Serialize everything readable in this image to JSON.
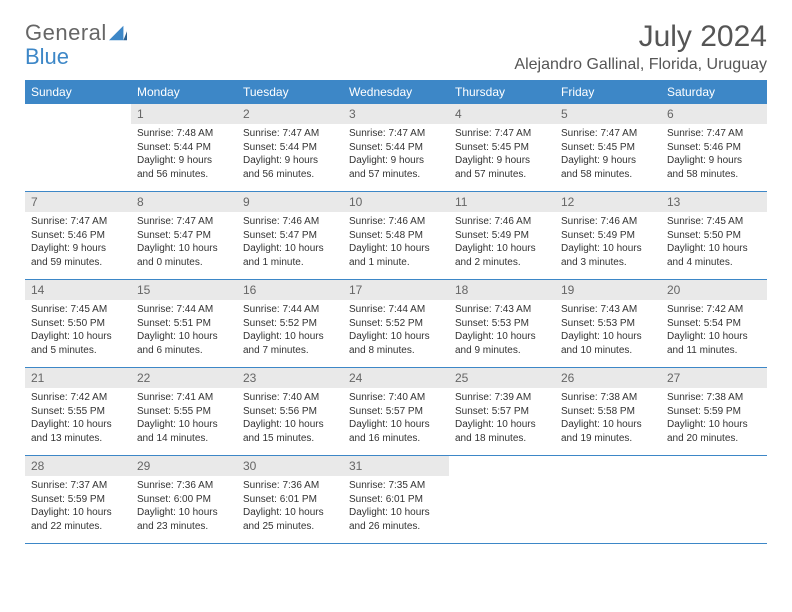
{
  "logo": {
    "text1": "General",
    "text2": "Blue"
  },
  "title": "July 2024",
  "location": "Alejandro Gallinal, Florida, Uruguay",
  "colors": {
    "header_bg": "#3d87c7",
    "header_text": "#ffffff",
    "daynum_bg": "#e9e9e9",
    "daynum_text": "#666666",
    "body_bg": "#ffffff",
    "text": "#333333",
    "rule": "#3d87c7",
    "title_text": "#555555"
  },
  "typography": {
    "title_fontsize": 30,
    "location_fontsize": 16,
    "weekday_fontsize": 12,
    "daynum_fontsize": 12,
    "cell_fontsize": 10
  },
  "weekdays": [
    "Sunday",
    "Monday",
    "Tuesday",
    "Wednesday",
    "Thursday",
    "Friday",
    "Saturday"
  ],
  "weeks": [
    {
      "nums": [
        "",
        "1",
        "2",
        "3",
        "4",
        "5",
        "6"
      ],
      "cells": [
        "",
        "Sunrise: 7:48 AM\nSunset: 5:44 PM\nDaylight: 9 hours and 56 minutes.",
        "Sunrise: 7:47 AM\nSunset: 5:44 PM\nDaylight: 9 hours and 56 minutes.",
        "Sunrise: 7:47 AM\nSunset: 5:44 PM\nDaylight: 9 hours and 57 minutes.",
        "Sunrise: 7:47 AM\nSunset: 5:45 PM\nDaylight: 9 hours and 57 minutes.",
        "Sunrise: 7:47 AM\nSunset: 5:45 PM\nDaylight: 9 hours and 58 minutes.",
        "Sunrise: 7:47 AM\nSunset: 5:46 PM\nDaylight: 9 hours and 58 minutes."
      ]
    },
    {
      "nums": [
        "7",
        "8",
        "9",
        "10",
        "11",
        "12",
        "13"
      ],
      "cells": [
        "Sunrise: 7:47 AM\nSunset: 5:46 PM\nDaylight: 9 hours and 59 minutes.",
        "Sunrise: 7:47 AM\nSunset: 5:47 PM\nDaylight: 10 hours and 0 minutes.",
        "Sunrise: 7:46 AM\nSunset: 5:47 PM\nDaylight: 10 hours and 1 minute.",
        "Sunrise: 7:46 AM\nSunset: 5:48 PM\nDaylight: 10 hours and 1 minute.",
        "Sunrise: 7:46 AM\nSunset: 5:49 PM\nDaylight: 10 hours and 2 minutes.",
        "Sunrise: 7:46 AM\nSunset: 5:49 PM\nDaylight: 10 hours and 3 minutes.",
        "Sunrise: 7:45 AM\nSunset: 5:50 PM\nDaylight: 10 hours and 4 minutes."
      ]
    },
    {
      "nums": [
        "14",
        "15",
        "16",
        "17",
        "18",
        "19",
        "20"
      ],
      "cells": [
        "Sunrise: 7:45 AM\nSunset: 5:50 PM\nDaylight: 10 hours and 5 minutes.",
        "Sunrise: 7:44 AM\nSunset: 5:51 PM\nDaylight: 10 hours and 6 minutes.",
        "Sunrise: 7:44 AM\nSunset: 5:52 PM\nDaylight: 10 hours and 7 minutes.",
        "Sunrise: 7:44 AM\nSunset: 5:52 PM\nDaylight: 10 hours and 8 minutes.",
        "Sunrise: 7:43 AM\nSunset: 5:53 PM\nDaylight: 10 hours and 9 minutes.",
        "Sunrise: 7:43 AM\nSunset: 5:53 PM\nDaylight: 10 hours and 10 minutes.",
        "Sunrise: 7:42 AM\nSunset: 5:54 PM\nDaylight: 10 hours and 11 minutes."
      ]
    },
    {
      "nums": [
        "21",
        "22",
        "23",
        "24",
        "25",
        "26",
        "27"
      ],
      "cells": [
        "Sunrise: 7:42 AM\nSunset: 5:55 PM\nDaylight: 10 hours and 13 minutes.",
        "Sunrise: 7:41 AM\nSunset: 5:55 PM\nDaylight: 10 hours and 14 minutes.",
        "Sunrise: 7:40 AM\nSunset: 5:56 PM\nDaylight: 10 hours and 15 minutes.",
        "Sunrise: 7:40 AM\nSunset: 5:57 PM\nDaylight: 10 hours and 16 minutes.",
        "Sunrise: 7:39 AM\nSunset: 5:57 PM\nDaylight: 10 hours and 18 minutes.",
        "Sunrise: 7:38 AM\nSunset: 5:58 PM\nDaylight: 10 hours and 19 minutes.",
        "Sunrise: 7:38 AM\nSunset: 5:59 PM\nDaylight: 10 hours and 20 minutes."
      ]
    },
    {
      "nums": [
        "28",
        "29",
        "30",
        "31",
        "",
        "",
        ""
      ],
      "cells": [
        "Sunrise: 7:37 AM\nSunset: 5:59 PM\nDaylight: 10 hours and 22 minutes.",
        "Sunrise: 7:36 AM\nSunset: 6:00 PM\nDaylight: 10 hours and 23 minutes.",
        "Sunrise: 7:36 AM\nSunset: 6:01 PM\nDaylight: 10 hours and 25 minutes.",
        "Sunrise: 7:35 AM\nSunset: 6:01 PM\nDaylight: 10 hours and 26 minutes.",
        "",
        "",
        ""
      ]
    }
  ]
}
